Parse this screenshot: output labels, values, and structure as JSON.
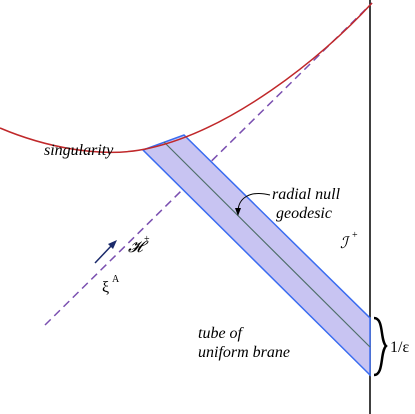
{
  "labels": {
    "singularity": "singularity",
    "geodesic_line1": "radial null",
    "geodesic_line2": "geodesic",
    "horizon": "𝓗",
    "horizon_sup": "+",
    "scri": "ℐ",
    "scri_sup": "+",
    "killing": "ξ",
    "killing_sup": "A",
    "tube_line1": "tube of",
    "tube_line2": "uniform brane",
    "width": "1/ε"
  }
}
